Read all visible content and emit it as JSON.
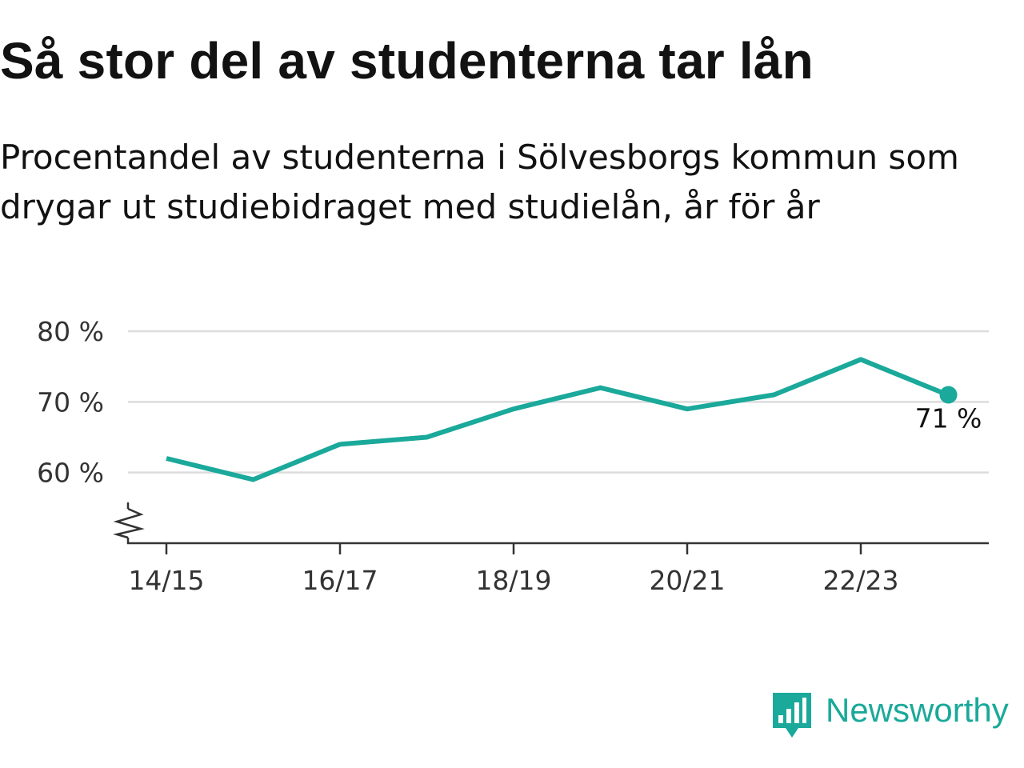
{
  "title": "Så stor del av studenterna tar lån",
  "subtitle": "Procentandel av studenterna i Sölvesborgs kommun som drygar ut studiebidraget med studielån, år för år",
  "brand": {
    "name": "Newsworthy",
    "color": "#1aa99a",
    "icon": "bar-chart-speech-bubble-icon"
  },
  "chart_data": {
    "type": "line",
    "x": [
      "14/15",
      "15/16",
      "16/17",
      "17/18",
      "18/19",
      "19/20",
      "20/21",
      "21/22",
      "22/23",
      "23/24"
    ],
    "x_tick_labels": [
      "14/15",
      "16/17",
      "18/19",
      "20/21",
      "22/23"
    ],
    "series": [
      {
        "color": "#1aa99a",
        "values": [
          62,
          59,
          64,
          65,
          69,
          72,
          69,
          71,
          76,
          71
        ]
      }
    ],
    "y_ticks": [
      60,
      70,
      80
    ],
    "y_tick_labels": [
      "60 %",
      "70 %",
      "80 %"
    ],
    "ylim": [
      50,
      80
    ],
    "y_axis_break": true,
    "grid": "horizontal",
    "end_label": "71 %",
    "xlabel": "",
    "ylabel": ""
  }
}
